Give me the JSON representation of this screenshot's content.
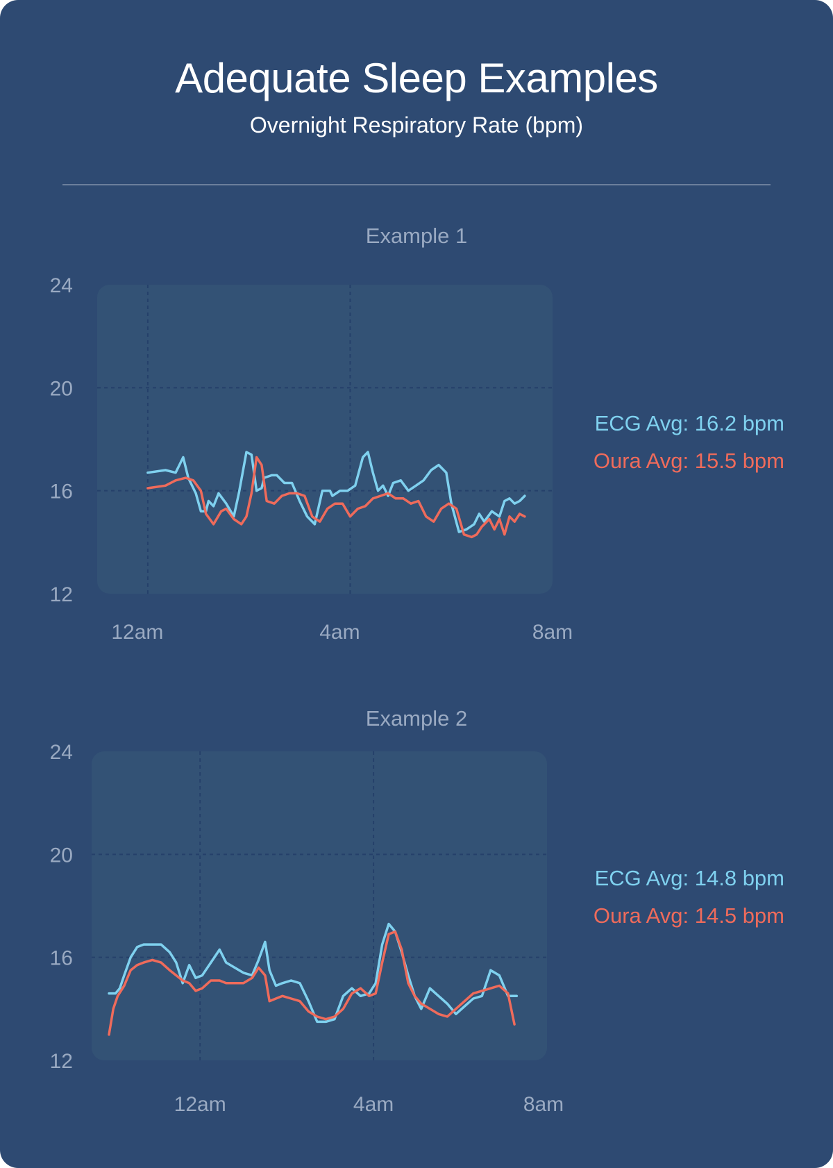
{
  "header": {
    "title": "Adequate Sleep Examples",
    "subtitle": "Overnight Respiratory Rate (bpm)"
  },
  "colors": {
    "background": "#2e4a72",
    "plot_area": "#335275",
    "ecg": "#7fd1ef",
    "oura": "#ef6b5b",
    "axis_text": "#9aaac2",
    "grid": "#25406a"
  },
  "chart_data": [
    {
      "type": "line",
      "title": "Example 1",
      "ylim": [
        12,
        24
      ],
      "yticks": [
        "24",
        "20",
        "16",
        "12"
      ],
      "xticks": [
        "12am",
        "4am",
        "8am"
      ],
      "x_range_hours": [
        -1,
        8
      ],
      "grid": "dashed",
      "legend": [
        {
          "label": "ECG Avg: 16.2 bpm",
          "series": "ECG"
        },
        {
          "label": "Oura Avg: 15.5 bpm",
          "series": "Oura"
        }
      ],
      "series": [
        {
          "name": "ECG",
          "x": [
            0,
            0.35,
            0.55,
            0.7,
            0.8,
            0.95,
            1.05,
            1.15,
            1.2,
            1.3,
            1.4,
            1.55,
            1.7,
            1.8,
            1.95,
            2.05,
            2.15,
            2.25,
            2.3,
            2.45,
            2.55,
            2.7,
            2.85,
            3.0,
            3.15,
            3.3,
            3.45,
            3.6,
            3.65,
            3.8,
            3.95,
            4.1,
            4.25,
            4.35,
            4.45,
            4.55,
            4.65,
            4.75,
            4.85,
            5.0,
            5.15,
            5.3,
            5.45,
            5.6,
            5.75,
            5.9,
            6.0,
            6.15,
            6.3,
            6.45,
            6.55,
            6.65,
            6.8,
            6.95,
            7.05,
            7.15,
            7.25,
            7.35,
            7.45
          ],
          "y": [
            16.7,
            16.8,
            16.7,
            17.3,
            16.5,
            15.9,
            15.2,
            15.2,
            15.6,
            15.4,
            15.9,
            15.5,
            15.0,
            15.9,
            17.5,
            17.4,
            16.0,
            16.1,
            16.5,
            16.6,
            16.6,
            16.3,
            16.3,
            15.6,
            15.0,
            14.7,
            16.0,
            16.0,
            15.8,
            16.0,
            16.0,
            16.2,
            17.3,
            17.5,
            16.7,
            16.0,
            16.2,
            15.8,
            16.3,
            16.4,
            16.0,
            16.2,
            16.4,
            16.8,
            17.0,
            16.7,
            15.5,
            14.4,
            14.5,
            14.7,
            15.1,
            14.8,
            15.2,
            15.0,
            15.6,
            15.7,
            15.5,
            15.6,
            15.8
          ]
        },
        {
          "name": "Oura",
          "x": [
            0,
            0.35,
            0.55,
            0.75,
            0.9,
            1.05,
            1.15,
            1.3,
            1.45,
            1.55,
            1.7,
            1.85,
            1.95,
            2.05,
            2.15,
            2.25,
            2.35,
            2.5,
            2.65,
            2.8,
            2.95,
            3.1,
            3.25,
            3.4,
            3.55,
            3.7,
            3.85,
            4.0,
            4.15,
            4.3,
            4.45,
            4.6,
            4.75,
            4.9,
            5.05,
            5.2,
            5.35,
            5.5,
            5.65,
            5.8,
            5.95,
            6.1,
            6.25,
            6.4,
            6.5,
            6.6,
            6.75,
            6.85,
            6.95,
            7.05,
            7.15,
            7.25,
            7.35,
            7.45
          ],
          "y": [
            16.1,
            16.2,
            16.4,
            16.5,
            16.4,
            16.0,
            15.1,
            14.7,
            15.2,
            15.3,
            14.9,
            14.7,
            15.0,
            15.9,
            17.3,
            17.0,
            15.6,
            15.5,
            15.8,
            15.9,
            15.9,
            15.8,
            15.0,
            14.8,
            15.3,
            15.5,
            15.5,
            15.0,
            15.3,
            15.4,
            15.7,
            15.8,
            15.9,
            15.7,
            15.7,
            15.5,
            15.6,
            15.0,
            14.8,
            15.3,
            15.5,
            15.3,
            14.3,
            14.2,
            14.3,
            14.6,
            14.9,
            14.5,
            14.9,
            14.3,
            15.0,
            14.8,
            15.1,
            15.0
          ]
        }
      ]
    },
    {
      "type": "line",
      "title": "Example 2",
      "ylim": [
        12,
        24
      ],
      "yticks": [
        "24",
        "20",
        "16",
        "12"
      ],
      "xticks": [
        "12am",
        "4am",
        "8am"
      ],
      "x_range_hours": [
        -2.5,
        8
      ],
      "grid": "dashed",
      "legend": [
        {
          "label": "ECG Avg: 14.8 bpm",
          "series": "ECG"
        },
        {
          "label": "Oura Avg: 14.5 bpm",
          "series": "Oura"
        }
      ],
      "series": [
        {
          "name": "ECG",
          "x": [
            -2.1,
            -1.95,
            -1.85,
            -1.75,
            -1.6,
            -1.45,
            -1.3,
            -1.1,
            -0.9,
            -0.7,
            -0.55,
            -0.4,
            -0.25,
            -0.1,
            0.05,
            0.25,
            0.45,
            0.6,
            0.8,
            1.0,
            1.2,
            1.35,
            1.5,
            1.6,
            1.75,
            1.9,
            2.1,
            2.3,
            2.5,
            2.7,
            2.9,
            3.1,
            3.3,
            3.5,
            3.7,
            3.9,
            4.05,
            4.2,
            4.35,
            4.5,
            4.65,
            4.8,
            4.95,
            5.1,
            5.3,
            5.5,
            5.7,
            5.9,
            6.1,
            6.3,
            6.5,
            6.7,
            6.9,
            7.1,
            7.3
          ],
          "y": [
            14.6,
            14.6,
            14.8,
            15.3,
            16.0,
            16.4,
            16.5,
            16.5,
            16.5,
            16.2,
            15.8,
            15.0,
            15.7,
            15.2,
            15.3,
            15.8,
            16.3,
            15.8,
            15.6,
            15.4,
            15.3,
            15.9,
            16.6,
            15.5,
            14.9,
            15.0,
            15.1,
            15.0,
            14.3,
            13.5,
            13.5,
            13.6,
            14.5,
            14.8,
            14.5,
            14.6,
            15.0,
            16.5,
            17.3,
            17.0,
            16.2,
            15.3,
            14.5,
            14.0,
            14.8,
            14.5,
            14.2,
            13.8,
            14.1,
            14.4,
            14.5,
            15.5,
            15.3,
            14.5,
            14.5
          ]
        },
        {
          "name": "Oura",
          "x": [
            -2.1,
            -2.0,
            -1.9,
            -1.75,
            -1.6,
            -1.45,
            -1.3,
            -1.1,
            -0.9,
            -0.7,
            -0.55,
            -0.4,
            -0.25,
            -0.1,
            0.05,
            0.25,
            0.45,
            0.6,
            0.8,
            1.0,
            1.2,
            1.35,
            1.5,
            1.6,
            1.75,
            1.9,
            2.1,
            2.3,
            2.5,
            2.7,
            2.9,
            3.1,
            3.3,
            3.5,
            3.7,
            3.9,
            4.05,
            4.2,
            4.35,
            4.5,
            4.65,
            4.8,
            4.95,
            5.1,
            5.3,
            5.5,
            5.7,
            5.9,
            6.1,
            6.3,
            6.5,
            6.7,
            6.9,
            7.1,
            7.25
          ],
          "y": [
            13.0,
            14.0,
            14.5,
            14.9,
            15.5,
            15.7,
            15.8,
            15.9,
            15.8,
            15.5,
            15.3,
            15.1,
            15.0,
            14.7,
            14.8,
            15.1,
            15.1,
            15.0,
            15.0,
            15.0,
            15.2,
            15.6,
            15.3,
            14.3,
            14.4,
            14.5,
            14.4,
            14.3,
            13.9,
            13.7,
            13.6,
            13.7,
            14.0,
            14.6,
            14.8,
            14.5,
            14.6,
            15.8,
            16.9,
            17.0,
            16.3,
            15.0,
            14.5,
            14.2,
            14.0,
            13.8,
            13.7,
            14.0,
            14.3,
            14.6,
            14.7,
            14.8,
            14.9,
            14.6,
            13.4
          ]
        }
      ]
    }
  ]
}
